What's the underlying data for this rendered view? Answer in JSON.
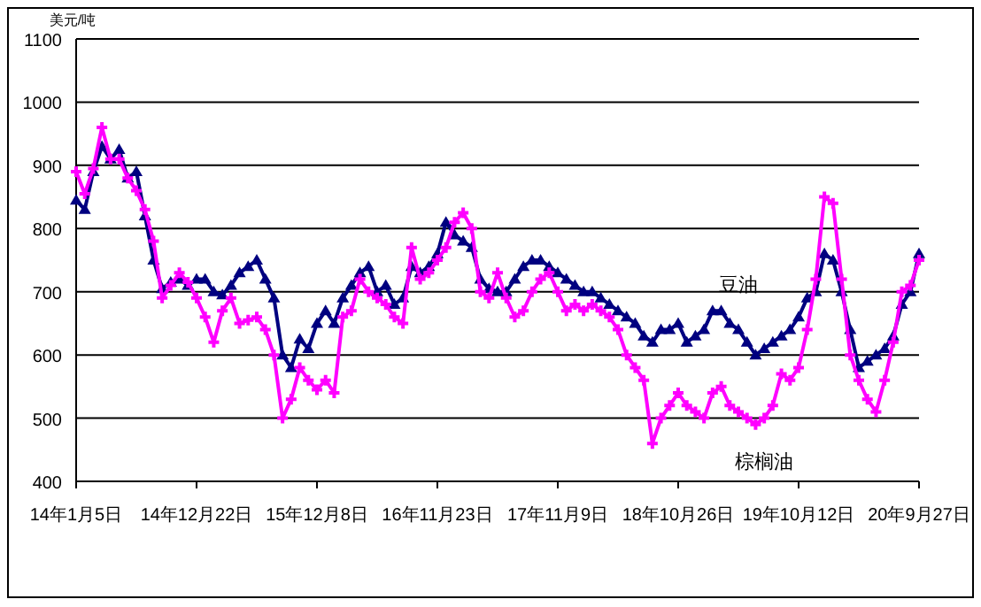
{
  "chart_data": {
    "type": "line",
    "ylabel": "美元/吨",
    "categories": [
      "14年1月5日",
      null,
      null,
      null,
      null,
      null,
      null,
      null,
      null,
      null,
      null,
      null,
      null,
      null,
      "14年12月22日",
      null,
      null,
      null,
      null,
      null,
      null,
      null,
      null,
      null,
      null,
      null,
      null,
      null,
      "15年12月8日",
      null,
      null,
      null,
      null,
      null,
      null,
      null,
      null,
      null,
      null,
      null,
      null,
      null,
      "16年11月23日",
      null,
      null,
      null,
      null,
      null,
      null,
      null,
      null,
      null,
      null,
      null,
      null,
      null,
      "17年11月9日",
      null,
      null,
      null,
      null,
      null,
      null,
      null,
      null,
      null,
      null,
      null,
      null,
      null,
      "18年10月26日",
      null,
      null,
      null,
      null,
      null,
      null,
      null,
      null,
      null,
      null,
      null,
      null,
      null,
      "19年10月12日",
      null,
      null,
      null,
      null,
      null,
      null,
      null,
      null,
      null,
      null,
      null,
      null,
      null,
      "20年9月27日"
    ],
    "ylim": [
      400,
      1100
    ],
    "yticks": [
      400,
      500,
      600,
      700,
      800,
      900,
      1000,
      1100
    ],
    "grid": "y",
    "legend": false,
    "line_style": "solid",
    "series": [
      {
        "name": "豆油",
        "color": "#000080",
        "marker": "triangle",
        "values": [
          845,
          830,
          890,
          930,
          910,
          925,
          880,
          890,
          820,
          750,
          705,
          715,
          720,
          710,
          720,
          720,
          700,
          695,
          710,
          730,
          740,
          750,
          720,
          690,
          600,
          580,
          625,
          610,
          650,
          670,
          650,
          690,
          710,
          730,
          740,
          700,
          710,
          680,
          690,
          740,
          730,
          740,
          760,
          810,
          790,
          780,
          770,
          720,
          705,
          700,
          700,
          720,
          740,
          750,
          750,
          740,
          730,
          720,
          710,
          700,
          700,
          690,
          680,
          670,
          660,
          650,
          630,
          620,
          640,
          640,
          650,
          620,
          630,
          640,
          670,
          670,
          650,
          640,
          620,
          600,
          610,
          620,
          630,
          640,
          660,
          690,
          700,
          760,
          750,
          700,
          640,
          580,
          590,
          600,
          610,
          630,
          680,
          700,
          760
        ]
      },
      {
        "name": "棕榈油",
        "color": "#ff00ff",
        "marker": "cross",
        "values": [
          890,
          855,
          895,
          960,
          910,
          910,
          880,
          860,
          830,
          780,
          690,
          710,
          730,
          715,
          690,
          660,
          620,
          670,
          690,
          650,
          655,
          660,
          640,
          600,
          500,
          530,
          580,
          560,
          545,
          560,
          540,
          660,
          670,
          720,
          700,
          690,
          680,
          660,
          650,
          770,
          720,
          730,
          750,
          770,
          810,
          825,
          800,
          700,
          690,
          730,
          690,
          660,
          670,
          700,
          720,
          730,
          700,
          670,
          680,
          670,
          680,
          670,
          660,
          640,
          600,
          580,
          560,
          460,
          500,
          520,
          540,
          520,
          510,
          500,
          540,
          550,
          520,
          510,
          500,
          490,
          500,
          520,
          570,
          560,
          580,
          640,
          720,
          850,
          840,
          720,
          600,
          560,
          530,
          510,
          560,
          620,
          700,
          710,
          750
        ]
      }
    ]
  }
}
